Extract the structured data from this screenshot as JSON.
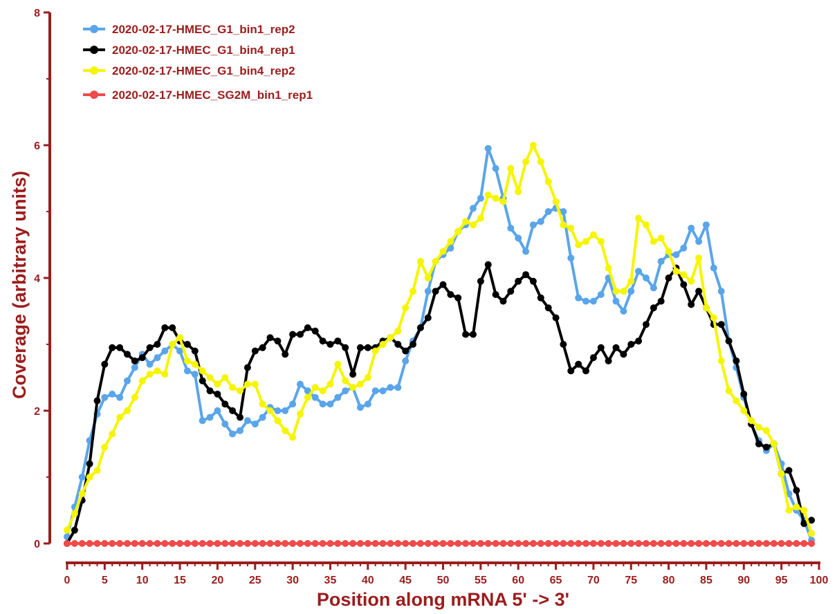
{
  "chart_data": {
    "type": "line",
    "title": "",
    "xlabel": "Position along mRNA 5' -> 3'",
    "ylabel": "Coverage (arbitrary units)",
    "xlim": [
      0,
      100
    ],
    "ylim": [
      0,
      8
    ],
    "x_ticks": [
      0,
      5,
      10,
      15,
      20,
      25,
      30,
      35,
      40,
      45,
      50,
      55,
      60,
      65,
      70,
      75,
      80,
      85,
      90,
      95,
      100
    ],
    "y_ticks": [
      0,
      2,
      4,
      6,
      8
    ],
    "grid": false,
    "legend_position": "top-left",
    "axis_color": "#9b1d1d",
    "x": [
      0,
      1,
      2,
      3,
      4,
      5,
      6,
      7,
      8,
      9,
      10,
      11,
      12,
      13,
      14,
      15,
      16,
      17,
      18,
      19,
      20,
      21,
      22,
      23,
      24,
      25,
      26,
      27,
      28,
      29,
      30,
      31,
      32,
      33,
      34,
      35,
      36,
      37,
      38,
      39,
      40,
      41,
      42,
      43,
      44,
      45,
      46,
      47,
      48,
      49,
      50,
      51,
      52,
      53,
      54,
      55,
      56,
      57,
      58,
      59,
      60,
      61,
      62,
      63,
      64,
      65,
      66,
      67,
      68,
      69,
      70,
      71,
      72,
      73,
      74,
      75,
      76,
      77,
      78,
      79,
      80,
      81,
      82,
      83,
      84,
      85,
      86,
      87,
      88,
      89,
      90,
      91,
      92,
      93,
      94,
      95,
      96,
      97,
      98,
      99
    ],
    "series": [
      {
        "name": "2020-02-17-HMEC_G1_bin1_rep2",
        "color": "#5aa5ea",
        "values": [
          0.1,
          0.55,
          1.0,
          1.55,
          1.95,
          2.2,
          2.25,
          2.2,
          2.45,
          2.65,
          2.85,
          2.7,
          2.8,
          2.9,
          3.0,
          2.9,
          2.6,
          2.55,
          1.85,
          1.9,
          2.0,
          1.8,
          1.65,
          1.7,
          1.85,
          1.8,
          1.9,
          2.05,
          2.0,
          2.0,
          2.1,
          2.4,
          2.3,
          2.2,
          2.1,
          2.1,
          2.2,
          2.3,
          2.35,
          2.05,
          2.1,
          2.3,
          2.3,
          2.35,
          2.35,
          2.75,
          3.05,
          3.25,
          3.8,
          4.25,
          4.35,
          4.45,
          4.7,
          4.8,
          5.05,
          5.2,
          5.95,
          5.65,
          5.2,
          4.75,
          4.6,
          4.4,
          4.8,
          4.85,
          5.0,
          5.05,
          5.0,
          4.3,
          3.7,
          3.65,
          3.65,
          3.75,
          4.0,
          3.65,
          3.5,
          3.8,
          4.1,
          4.0,
          3.85,
          4.25,
          4.35,
          4.35,
          4.45,
          4.75,
          4.55,
          4.8,
          4.15,
          3.8,
          3.05,
          2.65,
          2.2,
          1.8,
          1.55,
          1.4,
          1.5,
          1.2,
          0.75,
          0.5,
          0.35,
          0.05
        ]
      },
      {
        "name": "2020-02-17-HMEC_G1_bin4_rep1",
        "color": "#000000",
        "values": [
          0.0,
          0.2,
          0.65,
          1.2,
          2.15,
          2.7,
          2.95,
          2.95,
          2.85,
          2.75,
          2.8,
          2.95,
          3.0,
          3.25,
          3.25,
          3.05,
          3.0,
          2.9,
          2.45,
          2.3,
          2.25,
          2.1,
          2.0,
          1.9,
          2.65,
          2.9,
          2.95,
          3.1,
          3.05,
          2.85,
          3.15,
          3.15,
          3.25,
          3.2,
          3.05,
          3.0,
          3.05,
          2.95,
          2.55,
          2.95,
          2.95,
          2.95,
          3.05,
          3.1,
          3.0,
          2.9,
          3.0,
          3.25,
          3.4,
          3.8,
          3.9,
          3.75,
          3.7,
          3.15,
          3.15,
          3.95,
          4.2,
          3.75,
          3.65,
          3.8,
          3.95,
          4.05,
          3.95,
          3.7,
          3.55,
          3.4,
          3.0,
          2.6,
          2.7,
          2.6,
          2.8,
          2.95,
          2.75,
          2.95,
          2.85,
          3.0,
          3.05,
          3.3,
          3.55,
          3.65,
          4.0,
          4.15,
          3.9,
          3.6,
          3.8,
          3.55,
          3.3,
          3.3,
          3.05,
          2.75,
          2.25,
          1.8,
          1.5,
          1.45,
          1.5,
          1.05,
          1.1,
          0.8,
          0.3,
          0.35
        ]
      },
      {
        "name": "2020-02-17-HMEC_G1_bin4_rep2",
        "color": "#f5f500",
        "values": [
          0.2,
          0.45,
          0.75,
          1.0,
          1.1,
          1.45,
          1.65,
          1.9,
          2.0,
          2.2,
          2.45,
          2.55,
          2.6,
          2.55,
          3.0,
          3.1,
          2.75,
          2.7,
          2.6,
          2.5,
          2.4,
          2.5,
          2.35,
          2.3,
          2.4,
          2.4,
          2.1,
          2.0,
          1.85,
          1.7,
          1.6,
          1.95,
          2.2,
          2.35,
          2.3,
          2.4,
          2.7,
          2.45,
          2.35,
          2.4,
          2.5,
          2.9,
          3.0,
          3.1,
          3.2,
          3.55,
          3.8,
          4.25,
          4.0,
          4.25,
          4.4,
          4.55,
          4.7,
          4.85,
          4.8,
          4.9,
          5.25,
          5.2,
          5.15,
          5.65,
          5.3,
          5.75,
          6.0,
          5.75,
          5.45,
          5.15,
          4.8,
          4.75,
          4.5,
          4.55,
          4.65,
          4.55,
          4.15,
          3.8,
          3.8,
          3.95,
          4.9,
          4.8,
          4.55,
          4.6,
          4.4,
          4.1,
          4.05,
          3.95,
          4.3,
          3.55,
          3.4,
          2.75,
          2.3,
          2.15,
          2.0,
          1.85,
          1.75,
          1.7,
          1.5,
          1.05,
          0.5,
          0.55,
          0.5,
          0.15
        ]
      },
      {
        "name": "2020-02-17-HMEC_SG2M_bin1_rep1",
        "color": "#f04a4a",
        "values": [
          0,
          0,
          0,
          0,
          0,
          0,
          0,
          0,
          0,
          0,
          0,
          0,
          0,
          0,
          0,
          0,
          0,
          0,
          0,
          0,
          0,
          0,
          0,
          0,
          0,
          0,
          0,
          0,
          0,
          0,
          0,
          0,
          0,
          0,
          0,
          0,
          0,
          0,
          0,
          0,
          0,
          0,
          0,
          0,
          0,
          0,
          0,
          0,
          0,
          0,
          0,
          0,
          0,
          0,
          0,
          0,
          0,
          0,
          0,
          0,
          0,
          0,
          0,
          0,
          0,
          0,
          0,
          0,
          0,
          0,
          0,
          0,
          0,
          0,
          0,
          0,
          0,
          0,
          0,
          0,
          0,
          0,
          0,
          0,
          0,
          0,
          0,
          0,
          0,
          0,
          0,
          0,
          0,
          0,
          0,
          0,
          0,
          0,
          0,
          0
        ]
      }
    ]
  }
}
